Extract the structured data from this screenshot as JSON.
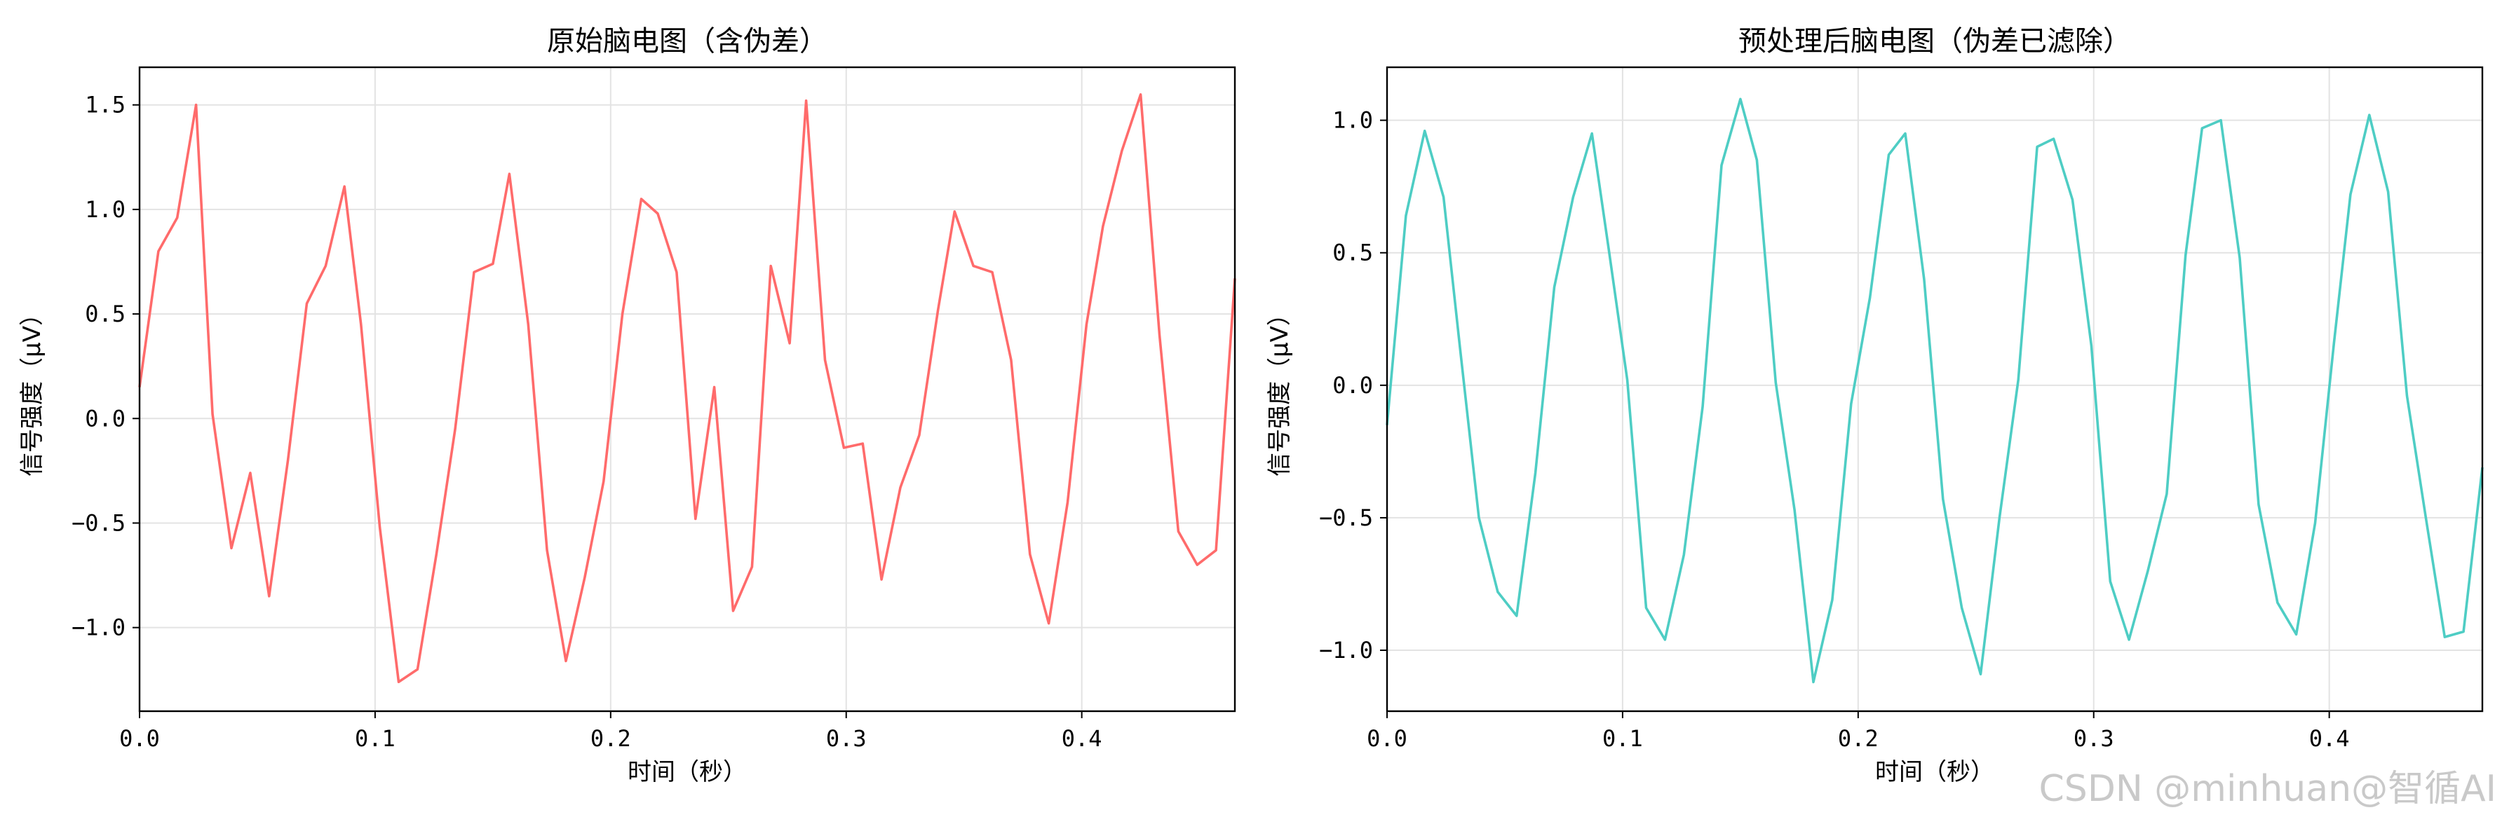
{
  "chart_data": [
    {
      "type": "line",
      "title": "原始脑电图（含伪差）",
      "xlabel": "时间（秒）",
      "ylabel": "信号强度（μV）",
      "xlim": [
        0,
        0.465
      ],
      "ylim": [
        -1.4,
        1.68
      ],
      "xticks": [
        0,
        0.1,
        0.2,
        0.3,
        0.4
      ],
      "xtick_labels": [
        "0.0",
        "0.1",
        "0.2",
        "0.3",
        "0.4"
      ],
      "yticks": [
        -1.0,
        -0.5,
        0.0,
        0.5,
        1.0,
        1.5
      ],
      "ytick_labels": [
        "−1.0",
        "−0.5",
        "0.0",
        "0.5",
        "1.0",
        "1.5"
      ],
      "grid": true,
      "color": "#ff6b6b",
      "series": [
        {
          "x": [
            0.0,
            0.008,
            0.016,
            0.024,
            0.031,
            0.039,
            0.047,
            0.055,
            0.063,
            0.071,
            0.079,
            0.087,
            0.094,
            0.102,
            0.11,
            0.118,
            0.126,
            0.134,
            0.142,
            0.15,
            0.157,
            0.165,
            0.173,
            0.181,
            0.189,
            0.197,
            0.205,
            0.213,
            0.22,
            0.228,
            0.236,
            0.244,
            0.252,
            0.26,
            0.268,
            0.276,
            0.283,
            0.291,
            0.299,
            0.307,
            0.315,
            0.323,
            0.331,
            0.339,
            0.346,
            0.354,
            0.362,
            0.37,
            0.378,
            0.386,
            0.394,
            0.402,
            0.409,
            0.417,
            0.425,
            0.433,
            0.441,
            0.449,
            0.457,
            0.465
          ],
          "y": [
            0.15,
            0.8,
            0.96,
            1.5,
            0.02,
            -0.62,
            -0.26,
            -0.85,
            -0.2,
            0.55,
            0.73,
            1.11,
            0.45,
            -0.52,
            -1.26,
            -1.2,
            -0.65,
            -0.05,
            0.7,
            0.74,
            1.17,
            0.45,
            -0.63,
            -1.16,
            -0.76,
            -0.3,
            0.5,
            1.05,
            0.98,
            0.7,
            -0.48,
            0.15,
            -0.92,
            -0.71,
            0.73,
            0.36,
            1.52,
            0.28,
            -0.14,
            -0.12,
            -0.77,
            -0.33,
            -0.08,
            0.52,
            0.99,
            0.73,
            0.7,
            0.28,
            -0.65,
            -0.98,
            -0.4,
            0.45,
            0.92,
            1.28,
            1.55,
            0.4,
            -0.54,
            -0.7,
            -0.63,
            0.67
          ]
        }
      ]
    },
    {
      "type": "line",
      "title": "预处理后脑电图（伪差已滤除）",
      "xlabel": "时间（秒）",
      "ylabel": "信号强度（μV）",
      "xlim": [
        0,
        0.465
      ],
      "ylim": [
        -1.23,
        1.2
      ],
      "xticks": [
        0,
        0.1,
        0.2,
        0.3,
        0.4
      ],
      "xtick_labels": [
        "0.0",
        "0.1",
        "0.2",
        "0.3",
        "0.4"
      ],
      "yticks": [
        -1.0,
        -0.5,
        0.0,
        0.5,
        1.0
      ],
      "ytick_labels": [
        "−1.0",
        "−0.5",
        "0.0",
        "0.5",
        "1.0"
      ],
      "grid": true,
      "color": "#4ecdc4",
      "series": [
        {
          "x": [
            0.0,
            0.008,
            0.016,
            0.024,
            0.031,
            0.039,
            0.047,
            0.055,
            0.063,
            0.071,
            0.079,
            0.087,
            0.094,
            0.102,
            0.11,
            0.118,
            0.126,
            0.134,
            0.142,
            0.15,
            0.157,
            0.165,
            0.173,
            0.181,
            0.189,
            0.197,
            0.205,
            0.213,
            0.22,
            0.228,
            0.236,
            0.244,
            0.252,
            0.26,
            0.268,
            0.276,
            0.283,
            0.291,
            0.299,
            0.307,
            0.315,
            0.323,
            0.331,
            0.339,
            0.346,
            0.354,
            0.362,
            0.37,
            0.378,
            0.386,
            0.394,
            0.402,
            0.409,
            0.417,
            0.425,
            0.433,
            0.441,
            0.449,
            0.457,
            0.465
          ],
          "y": [
            -0.15,
            0.64,
            0.96,
            0.71,
            0.14,
            -0.5,
            -0.78,
            -0.87,
            -0.33,
            0.37,
            0.71,
            0.95,
            0.52,
            0.02,
            -0.84,
            -0.96,
            -0.64,
            -0.08,
            0.83,
            1.08,
            0.85,
            0.01,
            -0.47,
            -1.12,
            -0.81,
            -0.07,
            0.33,
            0.87,
            0.95,
            0.4,
            -0.43,
            -0.84,
            -1.09,
            -0.5,
            0.02,
            0.9,
            0.93,
            0.7,
            0.15,
            -0.74,
            -0.96,
            -0.7,
            -0.41,
            0.49,
            0.97,
            1.0,
            0.48,
            -0.45,
            -0.82,
            -0.94,
            -0.52,
            0.16,
            0.72,
            1.02,
            0.73,
            -0.04,
            -0.5,
            -0.95,
            -0.93,
            -0.31
          ]
        }
      ]
    }
  ],
  "watermark": "CSDN @minhuan@智循AI"
}
